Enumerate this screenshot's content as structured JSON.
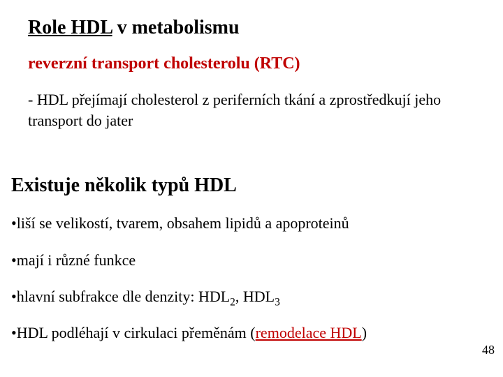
{
  "title_underlined": "Role HDL",
  "title_rest": " v metabolismu",
  "subtitle": "reverzní transport cholesterolu (RTC)",
  "body1_prefix": "- ",
  "body1": "HDL přejímají cholesterol z periferních tkání a zprostředkují jeho transport do jater",
  "heading2": "Existuje několik typů HDL",
  "bullets": {
    "b1_dot": "• ",
    "b1_text": "liší se velikostí, tvarem, obsahem lipidů a apoproteinů",
    "b2_dot": "• ",
    "b2_text": "mají i různé funkce",
    "b3_dot": "• ",
    "b3_pre": "hlavní subfrakce  dle denzity: HDL",
    "b3_sub1": "2",
    "b3_mid": ", HDL",
    "b3_sub2": "3",
    "b4_dot": "• ",
    "b4_pre": "HDL podléhají v cirkulaci přeměnám (",
    "b4_link": "remodelace HDL",
    "b4_post": ")"
  },
  "page_number": "48",
  "colors": {
    "text": "#000000",
    "accent": "#c00000",
    "background": "#ffffff"
  },
  "fonts": {
    "family": "Times New Roman",
    "title_size_pt": 28,
    "subtitle_size_pt": 24,
    "body_size_pt": 22,
    "pagenum_size_pt": 18
  }
}
